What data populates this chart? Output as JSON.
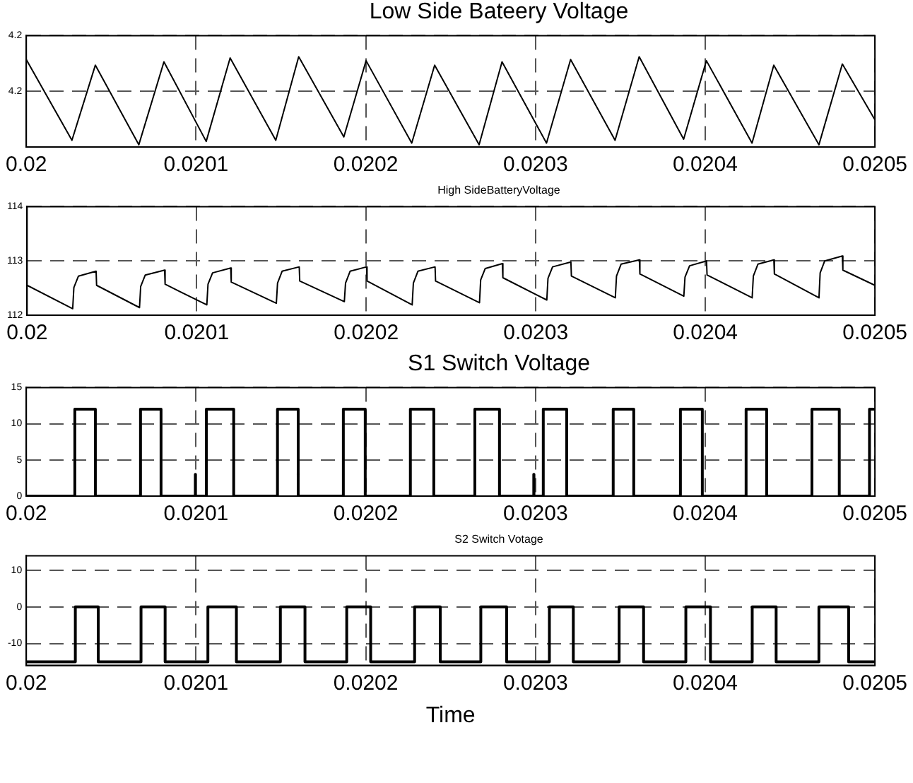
{
  "chart_data": [
    {
      "type": "line",
      "title": "Low Side Bateery Voltage",
      "xlim": [
        0.02,
        0.0205
      ],
      "xticks": [
        0.02,
        0.0201,
        0.0202,
        0.0203,
        0.0204,
        0.0205
      ],
      "ylim": [
        4.19,
        4.21
      ],
      "yticks": [
        4.2,
        {
          "value": 4.21,
          "label": "4.2"
        }
      ],
      "grid": true,
      "legend": false,
      "marker": "none",
      "x": [
        0.02,
        0.0200269,
        0.0200407,
        0.0200663,
        0.0200811,
        0.020106,
        0.0201201,
        0.020147,
        0.0201605,
        0.0201871,
        0.0202002,
        0.0202271,
        0.0202406,
        0.0202668,
        0.0202803,
        0.0203065,
        0.0203207,
        0.0203469,
        0.0203611,
        0.0203873,
        0.0204007,
        0.0204276,
        0.0204404,
        0.020467,
        0.0204808,
        0.0205
      ],
      "series": [
        {
          "color": "#000000",
          "values": [
            4.2057,
            4.1912,
            4.2047,
            4.1904,
            4.2053,
            4.191,
            4.206,
            4.1912,
            4.2062,
            4.1918,
            4.2055,
            4.1907,
            4.2047,
            4.1904,
            4.2053,
            4.1907,
            4.2057,
            4.1912,
            4.2062,
            4.1914,
            4.2055,
            4.1907,
            4.2047,
            4.1904,
            4.2049,
            4.1949
          ]
        }
      ]
    },
    {
      "type": "line",
      "title": "High SideBatteryVoltage",
      "xlim": [
        0.02,
        0.0205
      ],
      "xticks": [
        0.02,
        0.0201,
        0.0202,
        0.0203,
        0.0204,
        0.0205
      ],
      "ylim": [
        112,
        114
      ],
      "yticks": [
        112,
        113,
        114
      ],
      "grid": true,
      "legend": false,
      "marker": "none",
      "x": [
        0.02,
        0.0200269,
        0.0200276,
        0.0200303,
        0.0200407,
        0.020041,
        0.0200663,
        0.020067,
        0.0200697,
        0.0200811,
        0.0200814,
        0.020106,
        0.0201067,
        0.0201094,
        0.0201201,
        0.0201204,
        0.020147,
        0.0201477,
        0.0201504,
        0.0201605,
        0.0201608,
        0.0201871,
        0.0201878,
        0.0201905,
        0.0202002,
        0.0202005,
        0.0202271,
        0.0202278,
        0.0202305,
        0.0202406,
        0.0202409,
        0.0202668,
        0.0202675,
        0.0202702,
        0.0202803,
        0.0202806,
        0.0203065,
        0.0203072,
        0.0203099,
        0.0203207,
        0.020321,
        0.0203469,
        0.0203476,
        0.0203503,
        0.0203611,
        0.0203614,
        0.0203873,
        0.020388,
        0.0203907,
        0.0204007,
        0.020401,
        0.0204276,
        0.0204283,
        0.020431,
        0.0204404,
        0.0204407,
        0.020467,
        0.0204677,
        0.0204704,
        0.0204808,
        0.0204811,
        0.0205
      ],
      "series": [
        {
          "color": "#000000",
          "values": [
            112.55,
            112.12,
            112.51,
            112.72,
            112.81,
            112.55,
            112.14,
            112.53,
            112.74,
            112.83,
            112.57,
            112.19,
            112.57,
            112.78,
            112.87,
            112.61,
            112.22,
            112.59,
            112.81,
            112.89,
            112.63,
            112.25,
            112.59,
            112.81,
            112.89,
            112.63,
            112.19,
            112.59,
            112.81,
            112.89,
            112.63,
            112.23,
            112.65,
            112.86,
            112.95,
            112.69,
            112.28,
            112.68,
            112.89,
            112.98,
            112.72,
            112.32,
            112.72,
            112.94,
            113.02,
            112.76,
            112.35,
            112.7,
            112.91,
            113.0,
            112.74,
            112.32,
            112.72,
            112.94,
            113.02,
            112.76,
            112.32,
            112.78,
            113.0,
            113.09,
            112.83,
            112.55
          ]
        }
      ]
    },
    {
      "type": "step",
      "title": "S1 Switch Voltage",
      "xlim": [
        0.02,
        0.0205
      ],
      "xticks": [
        0.02,
        0.0201,
        0.0202,
        0.0203,
        0.0204,
        0.0205
      ],
      "ylim": [
        0,
        15
      ],
      "yticks": [
        0,
        5,
        10,
        15
      ],
      "grid": true,
      "legend": false,
      "marker": "none",
      "x": [
        0.02,
        0.0200286,
        0.0200407,
        0.0200673,
        0.0200794,
        0.0200996,
        0.0200997,
        0.0201061,
        0.0201222,
        0.020148,
        0.0201602,
        0.0201868,
        0.0201997,
        0.0202263,
        0.0202401,
        0.0202643,
        0.0202788,
        0.020299,
        0.0202991,
        0.0203046,
        0.0203184,
        0.0203458,
        0.0203579,
        0.0203854,
        0.0203983,
        0.0204241,
        0.0204362,
        0.0204629,
        0.020479,
        0.0204968,
        0.0205
      ],
      "series": [
        {
          "color": "#000000",
          "values": [
            0,
            12,
            0,
            12,
            0,
            3,
            0,
            12,
            0,
            12,
            0,
            12,
            0,
            12,
            0,
            12,
            0,
            3,
            0,
            12,
            0,
            12,
            0,
            12,
            0,
            12,
            0,
            12,
            0,
            12,
            12
          ]
        }
      ]
    },
    {
      "type": "step",
      "title": "S2 Switch Votage",
      "xlabel": "Time",
      "xlim": [
        0.02,
        0.0205
      ],
      "xticks": [
        0.02,
        0.0201,
        0.0202,
        0.0203,
        0.0204,
        0.0205
      ],
      "ylim": [
        -16,
        14
      ],
      "yticks": [
        -10,
        0,
        10
      ],
      "grid": true,
      "legend": false,
      "marker": "none",
      "x": [
        0.02,
        0.0200289,
        0.0200424,
        0.0200676,
        0.0200818,
        0.020107,
        0.0201238,
        0.0201497,
        0.0201642,
        0.0201888,
        0.0202029,
        0.0202288,
        0.0202439,
        0.0202678,
        0.020283,
        0.0203082,
        0.0203223,
        0.0203493,
        0.0203637,
        0.0203886,
        0.0204031,
        0.0204277,
        0.0204418,
        0.020467,
        0.0204845,
        0.0205
      ],
      "series": [
        {
          "color": "#000000",
          "values": [
            -15,
            0,
            -15,
            0,
            -15,
            0,
            -15,
            0,
            -15,
            0,
            -15,
            0,
            -15,
            0,
            -15,
            0,
            -15,
            0,
            -15,
            0,
            -15,
            0,
            -15,
            0,
            -15,
            -15
          ]
        }
      ]
    }
  ]
}
